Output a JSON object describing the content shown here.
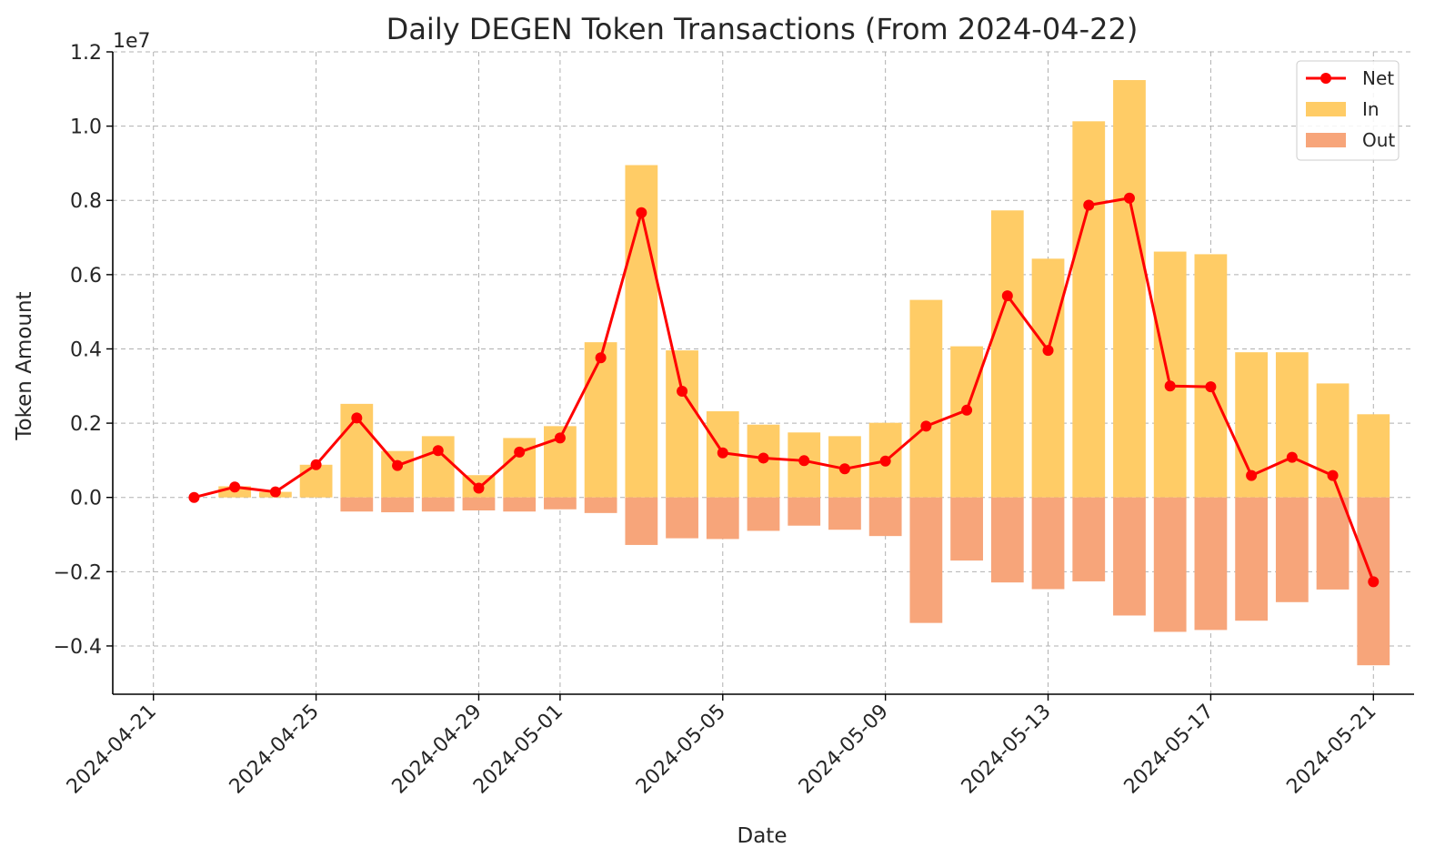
{
  "chart_data": {
    "type": "bar+line",
    "title": "Daily DEGEN Token Transactions (From 2024-04-22)",
    "xlabel": "Date",
    "ylabel": "Token Amount",
    "y_offset_label": "1e7",
    "y_scale": 10000000,
    "ylim": [
      -5300000,
      12000000
    ],
    "yticks": [
      -4000000,
      -2000000,
      0,
      2000000,
      4000000,
      6000000,
      8000000,
      10000000,
      12000000
    ],
    "ytick_labels": [
      "−0.4",
      "−0.2",
      "0.0",
      "0.2",
      "0.4",
      "0.6",
      "0.8",
      "1.0",
      "1.2"
    ],
    "xlim": [
      "2024-04-20",
      "2024-05-22"
    ],
    "xticks": [
      "2024-04-21",
      "2024-04-25",
      "2024-04-29",
      "2024-05-01",
      "2024-05-05",
      "2024-05-09",
      "2024-05-13",
      "2024-05-17",
      "2024-05-21"
    ],
    "grid": true,
    "legend": "top-right",
    "colors": {
      "net": "#ff0000",
      "in": "#ffcc66",
      "out": "#f7a57a"
    },
    "dates": [
      "2024-04-22",
      "2024-04-23",
      "2024-04-24",
      "2024-04-25",
      "2024-04-26",
      "2024-04-27",
      "2024-04-28",
      "2024-04-29",
      "2024-04-30",
      "2024-05-01",
      "2024-05-02",
      "2024-05-03",
      "2024-05-04",
      "2024-05-05",
      "2024-05-06",
      "2024-05-07",
      "2024-05-08",
      "2024-05-09",
      "2024-05-10",
      "2024-05-11",
      "2024-05-12",
      "2024-05-13",
      "2024-05-14",
      "2024-05-15",
      "2024-05-16",
      "2024-05-17",
      "2024-05-18",
      "2024-05-19",
      "2024-05-20",
      "2024-05-21"
    ],
    "series": [
      {
        "name": "Net",
        "type": "line",
        "values": [
          0,
          280000,
          150000,
          880000,
          2140000,
          860000,
          1260000,
          250000,
          1220000,
          1600000,
          3760000,
          7670000,
          2860000,
          1200000,
          1060000,
          990000,
          770000,
          980000,
          1920000,
          2350000,
          5430000,
          3960000,
          7870000,
          8060000,
          3000000,
          2980000,
          590000,
          1080000,
          590000,
          -2270000
        ]
      },
      {
        "name": "In",
        "type": "bar",
        "values": [
          0,
          300000,
          150000,
          880000,
          2520000,
          1250000,
          1650000,
          600000,
          1600000,
          1920000,
          4180000,
          8950000,
          3960000,
          2320000,
          1960000,
          1750000,
          1650000,
          2010000,
          5320000,
          4070000,
          7730000,
          6430000,
          10130000,
          11240000,
          6620000,
          6550000,
          3910000,
          3910000,
          3070000,
          2240000
        ]
      },
      {
        "name": "Out",
        "type": "bar",
        "values": [
          0,
          0,
          0,
          0,
          -380000,
          -400000,
          -380000,
          -350000,
          -380000,
          -320000,
          -420000,
          -1280000,
          -1100000,
          -1120000,
          -900000,
          -760000,
          -870000,
          -1040000,
          -3380000,
          -1700000,
          -2290000,
          -2470000,
          -2260000,
          -3180000,
          -3620000,
          -3570000,
          -3320000,
          -2820000,
          -2480000,
          -4520000
        ]
      }
    ]
  }
}
